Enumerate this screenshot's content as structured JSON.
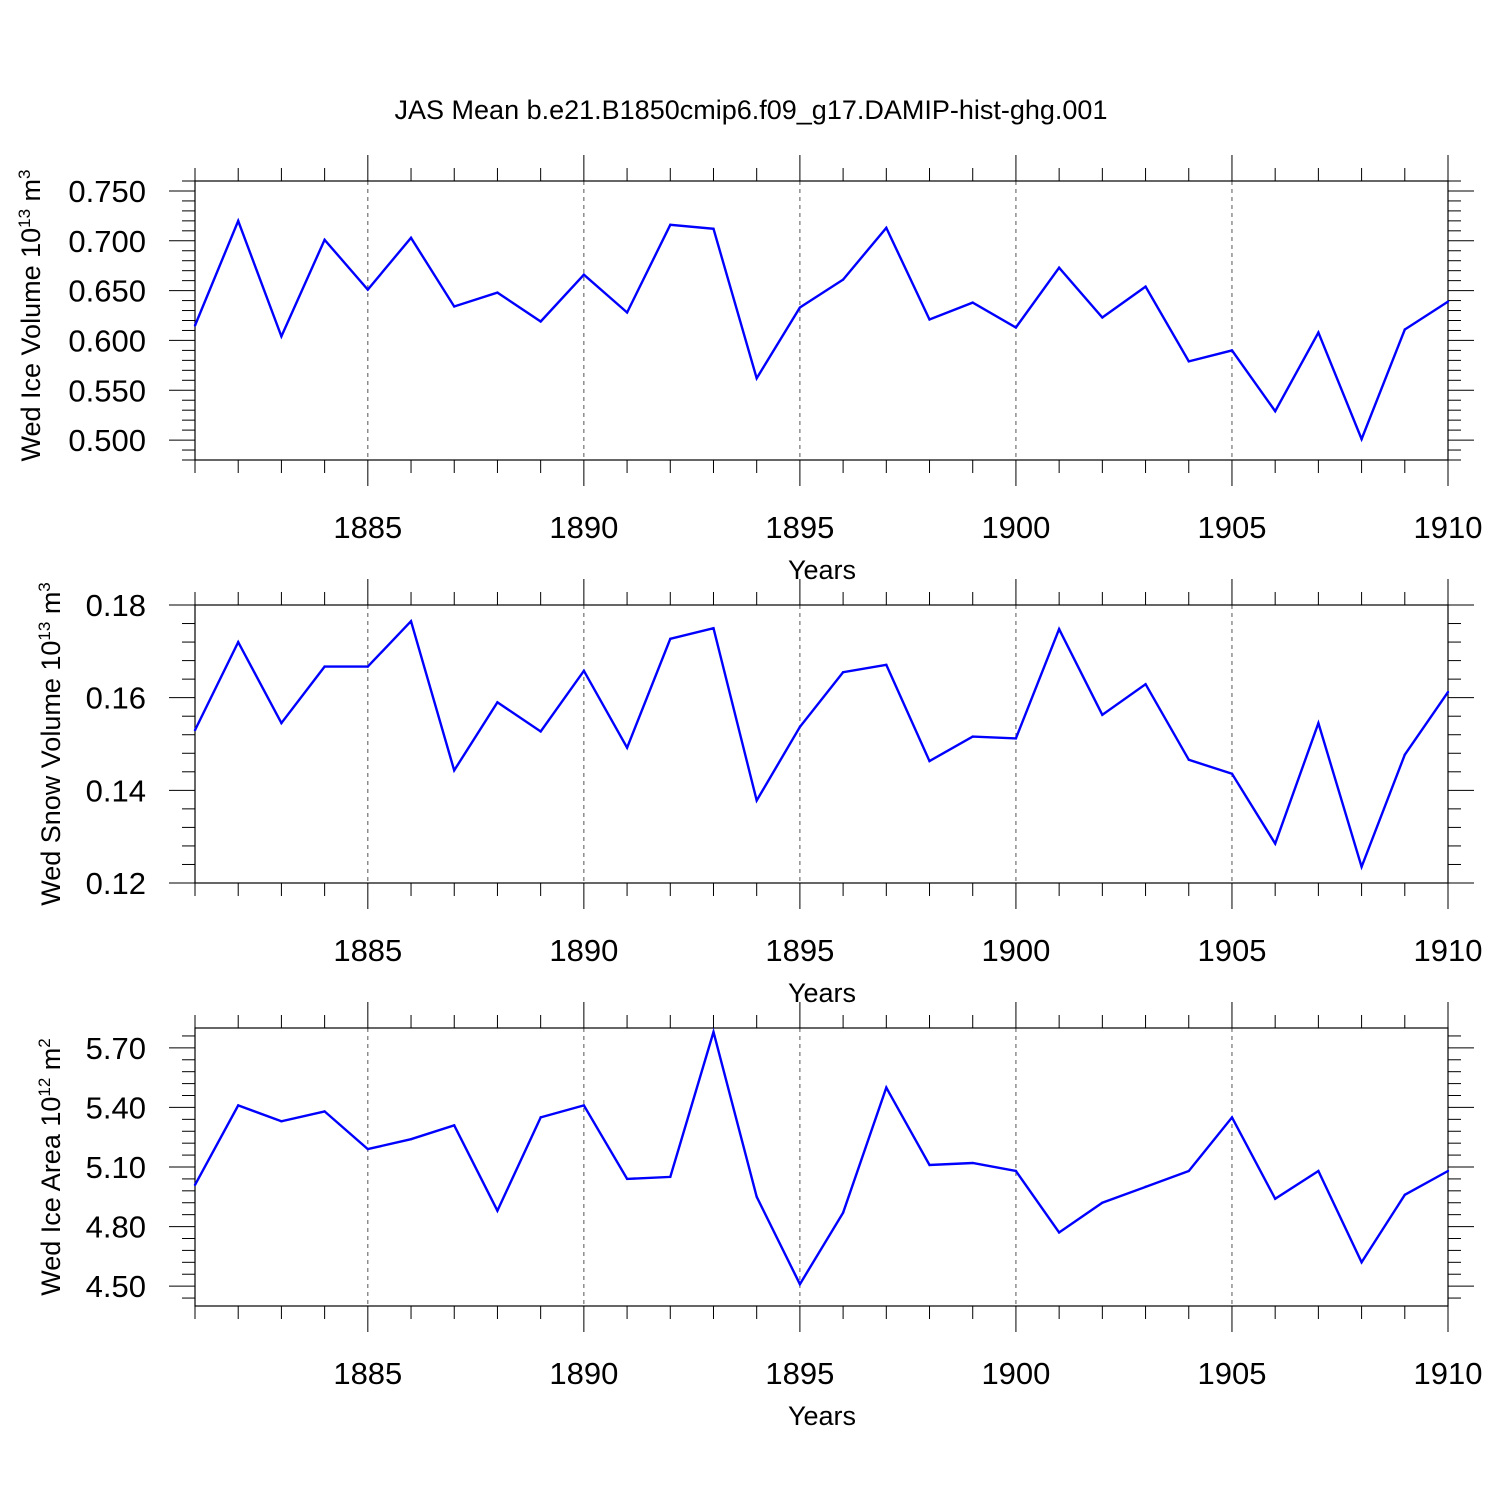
{
  "title": "JAS Mean b.e21.B1850cmip6.f09_g17.DAMIP-hist-ghg.001",
  "line_color": "#0000ff",
  "chart_data": [
    {
      "type": "line",
      "ylabel_main": "Wed Ice Volume 10",
      "ylabel_sup1": "13",
      "ylabel_unit": " m",
      "ylabel_sup2": "3",
      "xlabel": "Years",
      "xlim": [
        1881,
        1910
      ],
      "ylim": [
        0.48,
        0.76
      ],
      "yticks": [
        0.5,
        0.55,
        0.6,
        0.65,
        0.7,
        0.75
      ],
      "ytick_labels": [
        "0.500",
        "0.550",
        "0.600",
        "0.650",
        "0.700",
        "0.750"
      ],
      "xticks": [
        1885,
        1890,
        1895,
        1900,
        1905,
        1910
      ],
      "xtick_labels": [
        "1885",
        "1890",
        "1895",
        "1900",
        "1905",
        "1910"
      ],
      "x": [
        1881,
        1882,
        1883,
        1884,
        1885,
        1886,
        1887,
        1888,
        1889,
        1890,
        1891,
        1892,
        1893,
        1894,
        1895,
        1896,
        1897,
        1898,
        1899,
        1900,
        1901,
        1902,
        1903,
        1904,
        1905,
        1906,
        1907,
        1908,
        1909,
        1910
      ],
      "values": [
        0.615,
        0.72,
        0.604,
        0.701,
        0.651,
        0.703,
        0.634,
        0.648,
        0.619,
        0.666,
        0.628,
        0.716,
        0.712,
        0.562,
        0.633,
        0.661,
        0.713,
        0.621,
        0.638,
        0.613,
        0.673,
        0.623,
        0.654,
        0.579,
        0.59,
        0.529,
        0.608,
        0.501,
        0.611,
        0.639
      ]
    },
    {
      "type": "line",
      "ylabel_main": "Wed Snow Volume 10",
      "ylabel_sup1": "13",
      "ylabel_unit": " m",
      "ylabel_sup2": "3",
      "xlabel": "Years",
      "xlim": [
        1881,
        1910
      ],
      "ylim": [
        0.12,
        0.18
      ],
      "yticks": [
        0.12,
        0.14,
        0.16,
        0.18
      ],
      "ytick_labels": [
        "0.12",
        "0.14",
        "0.16",
        "0.18"
      ],
      "xticks": [
        1885,
        1890,
        1895,
        1900,
        1905,
        1910
      ],
      "xtick_labels": [
        "1885",
        "1890",
        "1895",
        "1900",
        "1905",
        "1910"
      ],
      "x": [
        1881,
        1882,
        1883,
        1884,
        1885,
        1886,
        1887,
        1888,
        1889,
        1890,
        1891,
        1892,
        1893,
        1894,
        1895,
        1896,
        1897,
        1898,
        1899,
        1900,
        1901,
        1902,
        1903,
        1904,
        1905,
        1906,
        1907,
        1908,
        1909,
        1910
      ],
      "values": [
        0.153,
        0.172,
        0.1545,
        0.1667,
        0.1667,
        0.1765,
        0.1443,
        0.159,
        0.1527,
        0.1658,
        0.1492,
        0.1727,
        0.175,
        0.1378,
        0.1537,
        0.1655,
        0.1671,
        0.1463,
        0.1516,
        0.1512,
        0.1748,
        0.1563,
        0.1629,
        0.1466,
        0.1436,
        0.1285,
        0.1545,
        0.1235,
        0.1477,
        0.1612
      ]
    },
    {
      "type": "line",
      "ylabel_main": "Wed Ice Area 10",
      "ylabel_sup1": "12",
      "ylabel_unit": " m",
      "ylabel_sup2": "2",
      "xlabel": "Years",
      "xlim": [
        1881,
        1910
      ],
      "ylim": [
        4.4,
        5.8
      ],
      "yticks": [
        4.5,
        4.8,
        5.1,
        5.4,
        5.7
      ],
      "ytick_labels": [
        "4.50",
        "4.80",
        "5.10",
        "5.40",
        "5.70"
      ],
      "xticks": [
        1885,
        1890,
        1895,
        1900,
        1905,
        1910
      ],
      "xtick_labels": [
        "1885",
        "1890",
        "1895",
        "1900",
        "1905",
        "1910"
      ],
      "x": [
        1881,
        1882,
        1883,
        1884,
        1885,
        1886,
        1887,
        1888,
        1889,
        1890,
        1891,
        1892,
        1893,
        1894,
        1895,
        1896,
        1897,
        1898,
        1899,
        1900,
        1901,
        1902,
        1903,
        1904,
        1905,
        1906,
        1907,
        1908,
        1909,
        1910
      ],
      "values": [
        5.01,
        5.41,
        5.33,
        5.38,
        5.19,
        5.24,
        5.31,
        4.88,
        5.35,
        5.41,
        5.04,
        5.05,
        5.78,
        4.95,
        4.51,
        4.87,
        5.5,
        5.11,
        5.12,
        5.08,
        4.77,
        4.92,
        5.0,
        5.08,
        5.35,
        4.94,
        5.08,
        4.62,
        4.96,
        5.08
      ]
    }
  ]
}
